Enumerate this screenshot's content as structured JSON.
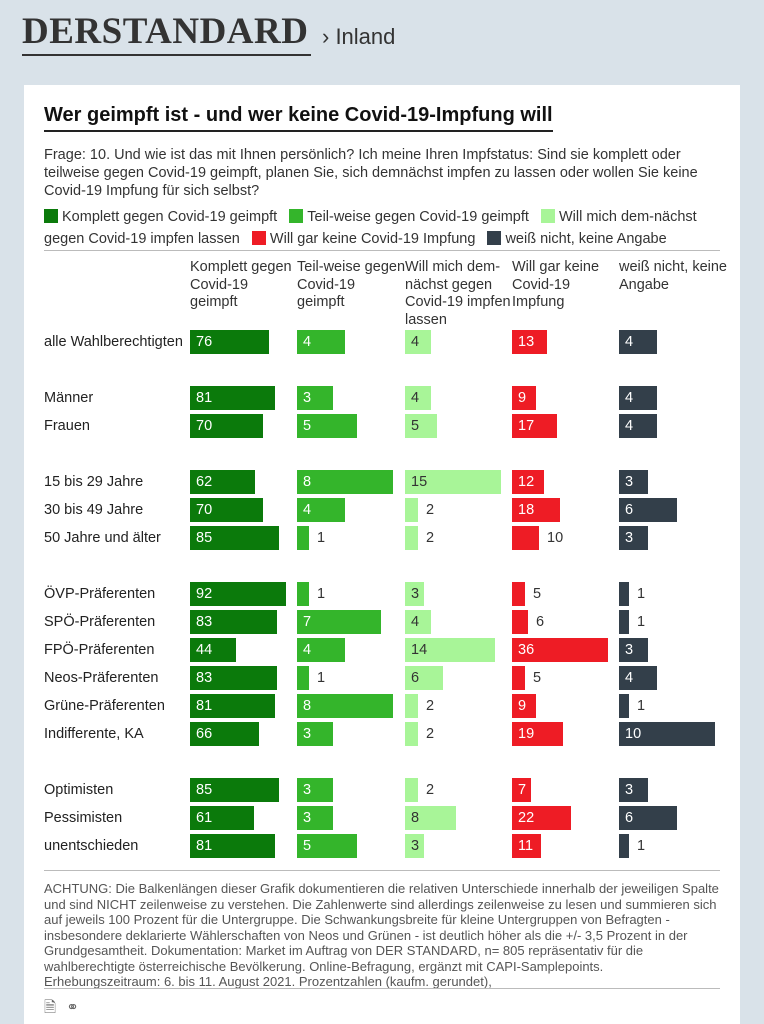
{
  "site": {
    "logo": "DERSTANDARD",
    "section": "› Inland"
  },
  "chart_title": "Wer geimpft ist - und wer keine Covid-19-Impfung will",
  "question": "Frage: 10. Und wie ist das mit Ihnen persönlich? Ich meine Ihren Impfstatus: Sind sie komplett oder teilweise gegen Covid-19 geimpft, planen Sie, sich demnächst impfen zu lassen oder wollen Sie keine Covid-19 Impfung für sich selbst?",
  "legend": [
    {
      "label": "Komplett gegen Covid-19 geimpft",
      "color": "#0b7a0b"
    },
    {
      "label": "Teil-weise gegen Covid-19 geimpft",
      "color": "#34b52b"
    },
    {
      "label": "Will mich dem-nächst gegen Covid-19 impfen lassen",
      "color": "#a8f598"
    },
    {
      "label": "Will gar keine Covid-19 Impfung",
      "color": "#ee1c25"
    },
    {
      "label": "weiß nicht, keine Angabe",
      "color": "#333f4a"
    }
  ],
  "chart_data": {
    "type": "bar",
    "columns": [
      {
        "name": "Komplett gegen Covid-19 geimpft",
        "color": "#0b7a0b",
        "label_color": "#ffffff"
      },
      {
        "name": "Teil-weise gegen Covid-19 geimpft",
        "color": "#34b52b",
        "label_color": "#ffffff"
      },
      {
        "name": "Will mich dem-nächst gegen Covid-19 impfen lassen",
        "color": "#a8f598",
        "label_color": "#333333"
      },
      {
        "name": "Will gar keine Covid-19 Impfung",
        "color": "#ee1c25",
        "label_color": "#ffffff"
      },
      {
        "name": "weiß nicht, keine Angabe",
        "color": "#333f4a",
        "label_color": "#ffffff"
      }
    ],
    "groups": [
      {
        "rows": [
          {
            "label": "alle Wahlberechtigten",
            "values": [
              76,
              4,
              4,
              13,
              4
            ]
          }
        ]
      },
      {
        "rows": [
          {
            "label": "Männer",
            "values": [
              81,
              3,
              4,
              9,
              4
            ]
          },
          {
            "label": "Frauen",
            "values": [
              70,
              5,
              5,
              17,
              4
            ]
          }
        ]
      },
      {
        "rows": [
          {
            "label": "15 bis 29 Jahre",
            "values": [
              62,
              8,
              15,
              12,
              3
            ]
          },
          {
            "label": "30 bis 49 Jahre",
            "values": [
              70,
              4,
              2,
              18,
              6
            ]
          },
          {
            "label": "50 Jahre und älter",
            "values": [
              85,
              1,
              2,
              10,
              3
            ]
          }
        ]
      },
      {
        "rows": [
          {
            "label": "ÖVP-Präferenten",
            "values": [
              92,
              1,
              3,
              5,
              1
            ]
          },
          {
            "label": "SPÖ-Präferenten",
            "values": [
              83,
              7,
              4,
              6,
              1
            ]
          },
          {
            "label": "FPÖ-Präferenten",
            "values": [
              44,
              4,
              14,
              36,
              3
            ]
          },
          {
            "label": "Neos-Präferenten",
            "values": [
              83,
              1,
              6,
              5,
              4
            ]
          },
          {
            "label": "Grüne-Präferenten",
            "values": [
              81,
              8,
              2,
              9,
              1
            ]
          },
          {
            "label": "Indifferente, KA",
            "values": [
              66,
              3,
              2,
              19,
              10
            ]
          }
        ]
      },
      {
        "rows": [
          {
            "label": "Optimisten",
            "values": [
              85,
              3,
              2,
              7,
              3
            ]
          },
          {
            "label": "Pessimisten",
            "values": [
              61,
              3,
              8,
              22,
              6
            ]
          },
          {
            "label": "unentschieden",
            "values": [
              81,
              5,
              3,
              11,
              1
            ]
          }
        ]
      }
    ]
  },
  "note": "ACHTUNG: Die Balkenlängen dieser Grafik dokumentieren die relativen Unterschiede innerhalb der jeweiligen Spalte und sind NICHT zeilenweise zu verstehen. Die Zahlenwerte sind allerdings zeilenweise zu lesen und summieren sich auf jeweils 100 Prozent für die Untergruppe. Die Schwankungsbreite für kleine Untergruppen von Befragten - insbesondere deklarierte Wählerschaften von Neos und Grünen - ist deutlich höher als die +/- 3,5 Prozent in der Grundgesamtheit. Dokumentation: Market im Auftrag von DER STANDARD, n= 805 repräsentativ für die wahlberechtigte österreichische Bevölkerung. Online-Befragung, ergänzt mit CAPI-Samplepoints. Erhebungszeitraum: 6. bis 11. August 2021. Prozentzahlen (kaufm. gerundet),"
}
